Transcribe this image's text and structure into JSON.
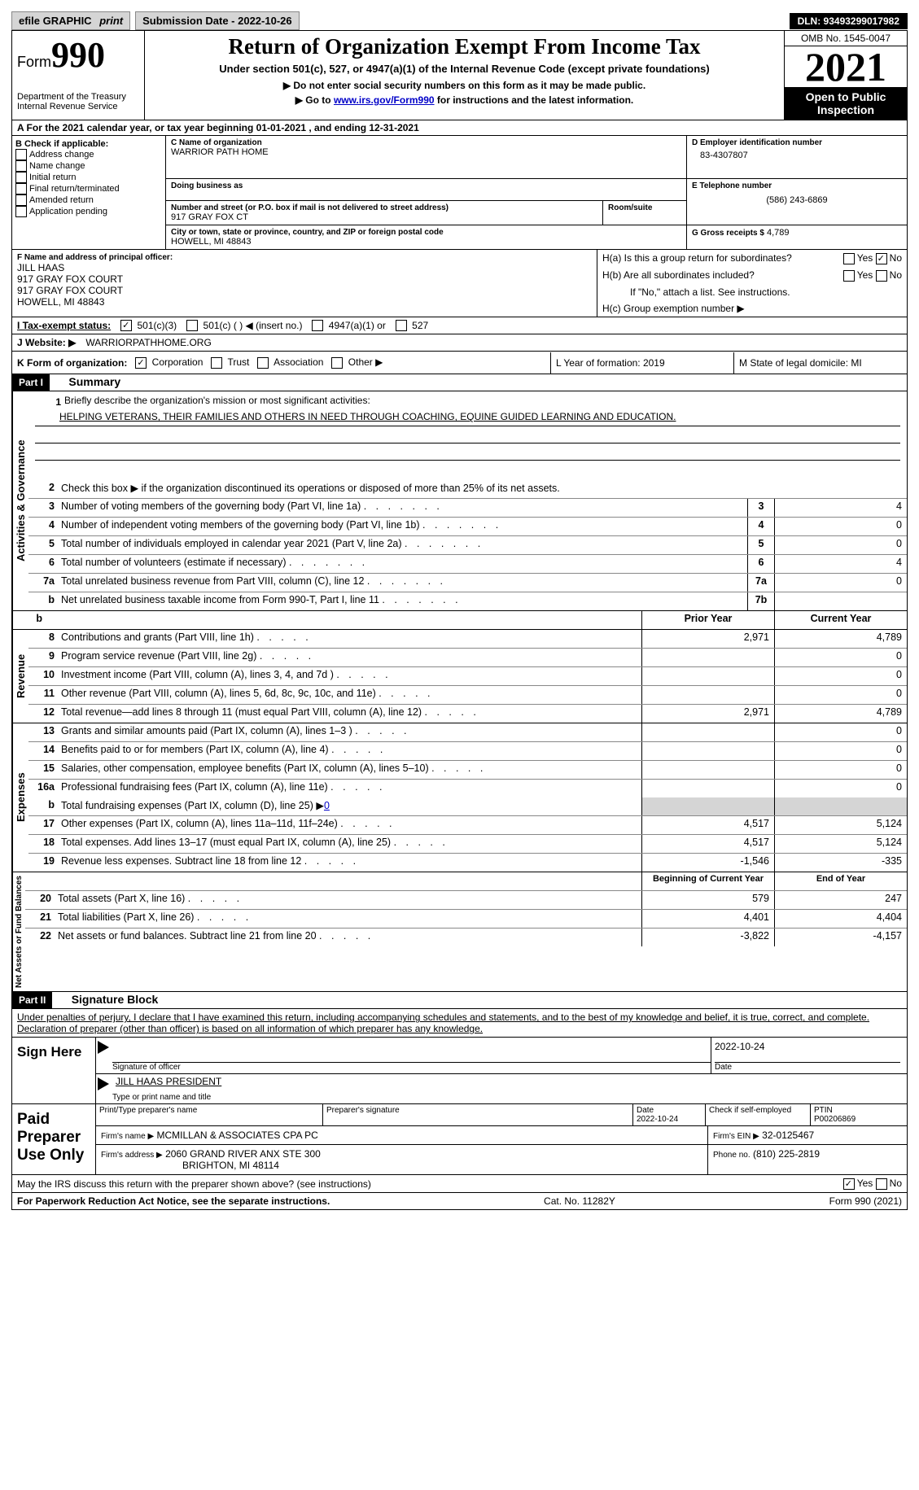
{
  "topbar": {
    "efile": "efile GRAPHIC",
    "print": "print",
    "submission": "Submission Date - 2022-10-26",
    "dln": "DLN: 93493299017982"
  },
  "header": {
    "form_label": "Form",
    "form_number": "990",
    "dept": "Department of the Treasury",
    "irs": "Internal Revenue Service",
    "title": "Return of Organization Exempt From Income Tax",
    "subtitle": "Under section 501(c), 527, or 4947(a)(1) of the Internal Revenue Code (except private foundations)",
    "note1": "▶ Do not enter social security numbers on this form as it may be made public.",
    "note2_pre": "▶ Go to ",
    "note2_link": "www.irs.gov/Form990",
    "note2_post": " for instructions and the latest information.",
    "omb": "OMB No. 1545-0047",
    "year": "2021",
    "inspection": "Open to Public Inspection"
  },
  "section_a": "A For the 2021 calendar year, or tax year beginning 01-01-2021   , and ending 12-31-2021",
  "checkboxes": {
    "intro": "B Check if applicable:",
    "items": [
      "Address change",
      "Name change",
      "Initial return",
      "Final return/terminated",
      "Amended return",
      "Application pending"
    ]
  },
  "org": {
    "name_label": "C Name of organization",
    "name": "WARRIOR PATH HOME",
    "dba": "Doing business as",
    "street_label": "Number and street (or P.O. box if mail is not delivered to street address)",
    "room": "Room/suite",
    "street": "917 GRAY FOX CT",
    "city_label": "City or town, state or province, country, and ZIP or foreign postal code",
    "city": "HOWELL, MI  48843",
    "ein_label": "D Employer identification number",
    "ein": "83-4307807",
    "tel_label": "E Telephone number",
    "tel": "(586) 243-6869",
    "gross_label": "G Gross receipts $",
    "gross": "4,789",
    "officer_label": "F Name and address of principal officer:",
    "officer_name": "JILL HAAS",
    "officer_addr1": "917 GRAY FOX COURT",
    "officer_addr2": "917 GRAY FOX COURT",
    "officer_city": "HOWELL, MI  48843",
    "ha": "H(a)  Is this a group return for subordinates?",
    "hb": "H(b)  Are all subordinates included?",
    "h_note": "If \"No,\" attach a list. See instructions.",
    "hc": "H(c)  Group exemption number ▶",
    "yes": "Yes",
    "no": "No"
  },
  "tax_status": {
    "label": "I   Tax-exempt status:",
    "o1": "501(c)(3)",
    "o2": "501(c) (  ) ◀ (insert no.)",
    "o3": "4947(a)(1) or",
    "o4": "527"
  },
  "website": {
    "label": "J   Website: ▶",
    "value": "WARRIORPATHHOME.ORG"
  },
  "row_k": {
    "k": "K Form of organization:",
    "corp": "Corporation",
    "trust": "Trust",
    "assoc": "Association",
    "other": "Other ▶",
    "l": "L Year of formation: 2019",
    "m": "M State of legal domicile: MI"
  },
  "part1": {
    "header": "Part I",
    "title": "Summary"
  },
  "summary": {
    "line1": "Briefly describe the organization's mission or most significant activities:",
    "mission": "HELPING VETERANS, THEIR FAMILIES AND OTHERS IN NEED THROUGH COACHING, EQUINE GUIDED LEARNING AND EDUCATION.",
    "line2": "Check this box ▶     if the organization discontinued its operations or disposed of more than 25% of its net assets.",
    "lines": [
      {
        "n": "3",
        "t": "Number of voting members of the governing body (Part VI, line 1a)",
        "box": "3",
        "v": "4"
      },
      {
        "n": "4",
        "t": "Number of independent voting members of the governing body (Part VI, line 1b)",
        "box": "4",
        "v": "0"
      },
      {
        "n": "5",
        "t": "Total number of individuals employed in calendar year 2021 (Part V, line 2a)",
        "box": "5",
        "v": "0"
      },
      {
        "n": "6",
        "t": "Total number of volunteers (estimate if necessary)",
        "box": "6",
        "v": "4"
      },
      {
        "n": "7a",
        "t": "Total unrelated business revenue from Part VIII, column (C), line 12",
        "box": "7a",
        "v": "0"
      },
      {
        "n": "b",
        "t": "Net unrelated business taxable income from Form 990-T, Part I, line 11",
        "box": "7b",
        "v": ""
      }
    ],
    "col_prior": "Prior Year",
    "col_current": "Current Year"
  },
  "revenue": {
    "label": "Revenue",
    "rows": [
      {
        "n": "8",
        "t": "Contributions and grants (Part VIII, line 1h)",
        "p": "2,971",
        "c": "4,789"
      },
      {
        "n": "9",
        "t": "Program service revenue (Part VIII, line 2g)",
        "p": "",
        "c": "0"
      },
      {
        "n": "10",
        "t": "Investment income (Part VIII, column (A), lines 3, 4, and 7d )",
        "p": "",
        "c": "0"
      },
      {
        "n": "11",
        "t": "Other revenue (Part VIII, column (A), lines 5, 6d, 8c, 9c, 10c, and 11e)",
        "p": "",
        "c": "0"
      },
      {
        "n": "12",
        "t": "Total revenue—add lines 8 through 11 (must equal Part VIII, column (A), line 12)",
        "p": "2,971",
        "c": "4,789"
      }
    ]
  },
  "expenses": {
    "label": "Expenses",
    "rows": [
      {
        "n": "13",
        "t": "Grants and similar amounts paid (Part IX, column (A), lines 1–3 )",
        "p": "",
        "c": "0"
      },
      {
        "n": "14",
        "t": "Benefits paid to or for members (Part IX, column (A), line 4)",
        "p": "",
        "c": "0"
      },
      {
        "n": "15",
        "t": "Salaries, other compensation, employee benefits (Part IX, column (A), lines 5–10)",
        "p": "",
        "c": "0"
      },
      {
        "n": "16a",
        "t": "Professional fundraising fees (Part IX, column (A), line 11e)",
        "p": "",
        "c": "0"
      }
    ],
    "row_b": {
      "n": "b",
      "t": "Total fundraising expenses (Part IX, column (D), line 25) ▶",
      "v": "0"
    },
    "rows2": [
      {
        "n": "17",
        "t": "Other expenses (Part IX, column (A), lines 11a–11d, 11f–24e)",
        "p": "4,517",
        "c": "5,124"
      },
      {
        "n": "18",
        "t": "Total expenses. Add lines 13–17 (must equal Part IX, column (A), line 25)",
        "p": "4,517",
        "c": "5,124"
      },
      {
        "n": "19",
        "t": "Revenue less expenses. Subtract line 18 from line 12",
        "p": "-1,546",
        "c": "-335"
      }
    ]
  },
  "net": {
    "label": "Net Assets or Fund Balances",
    "col_begin": "Beginning of Current Year",
    "col_end": "End of Year",
    "rows": [
      {
        "n": "20",
        "t": "Total assets (Part X, line 16)",
        "p": "579",
        "c": "247"
      },
      {
        "n": "21",
        "t": "Total liabilities (Part X, line 26)",
        "p": "4,401",
        "c": "4,404"
      },
      {
        "n": "22",
        "t": "Net assets or fund balances. Subtract line 21 from line 20",
        "p": "-3,822",
        "c": "-4,157"
      }
    ]
  },
  "part2": {
    "header": "Part II",
    "title": "Signature Block"
  },
  "declaration": "Under penalties of perjury, I declare that I have examined this return, including accompanying schedules and statements, and to the best of my knowledge and belief, it is true, correct, and complete. Declaration of preparer (other than officer) is based on all information of which preparer has any knowledge.",
  "signature": {
    "sign_here": "Sign Here",
    "sig_officer": "Signature of officer",
    "date": "Date",
    "sig_date": "2022-10-24",
    "name_title": "JILL HAAS  PRESIDENT",
    "type_name": "Type or print name and title"
  },
  "preparer": {
    "label": "Paid Preparer Use Only",
    "print_name": "Print/Type preparer's name",
    "prep_sig": "Preparer's signature",
    "date_label": "Date",
    "date_val": "2022-10-24",
    "check_label": "Check        if self-employed",
    "ptin_label": "PTIN",
    "ptin": "P00206869",
    "firm_name_label": "Firm's name    ▶",
    "firm_name": "MCMILLAN & ASSOCIATES CPA PC",
    "firm_ein_label": "Firm's EIN ▶",
    "firm_ein": "32-0125467",
    "firm_addr_label": "Firm's address ▶",
    "firm_addr1": "2060 GRAND RIVER ANX STE 300",
    "firm_addr2": "BRIGHTON, MI  48114",
    "phone_label": "Phone no.",
    "phone": "(810) 225-2819"
  },
  "discuss": "May the IRS discuss this return with the preparer shown above? (see instructions)",
  "footer": {
    "left": "For Paperwork Reduction Act Notice, see the separate instructions.",
    "mid": "Cat. No. 11282Y",
    "right": "Form 990 (2021)"
  },
  "style": {
    "link_color": "#0000c8",
    "black": "#000000"
  }
}
